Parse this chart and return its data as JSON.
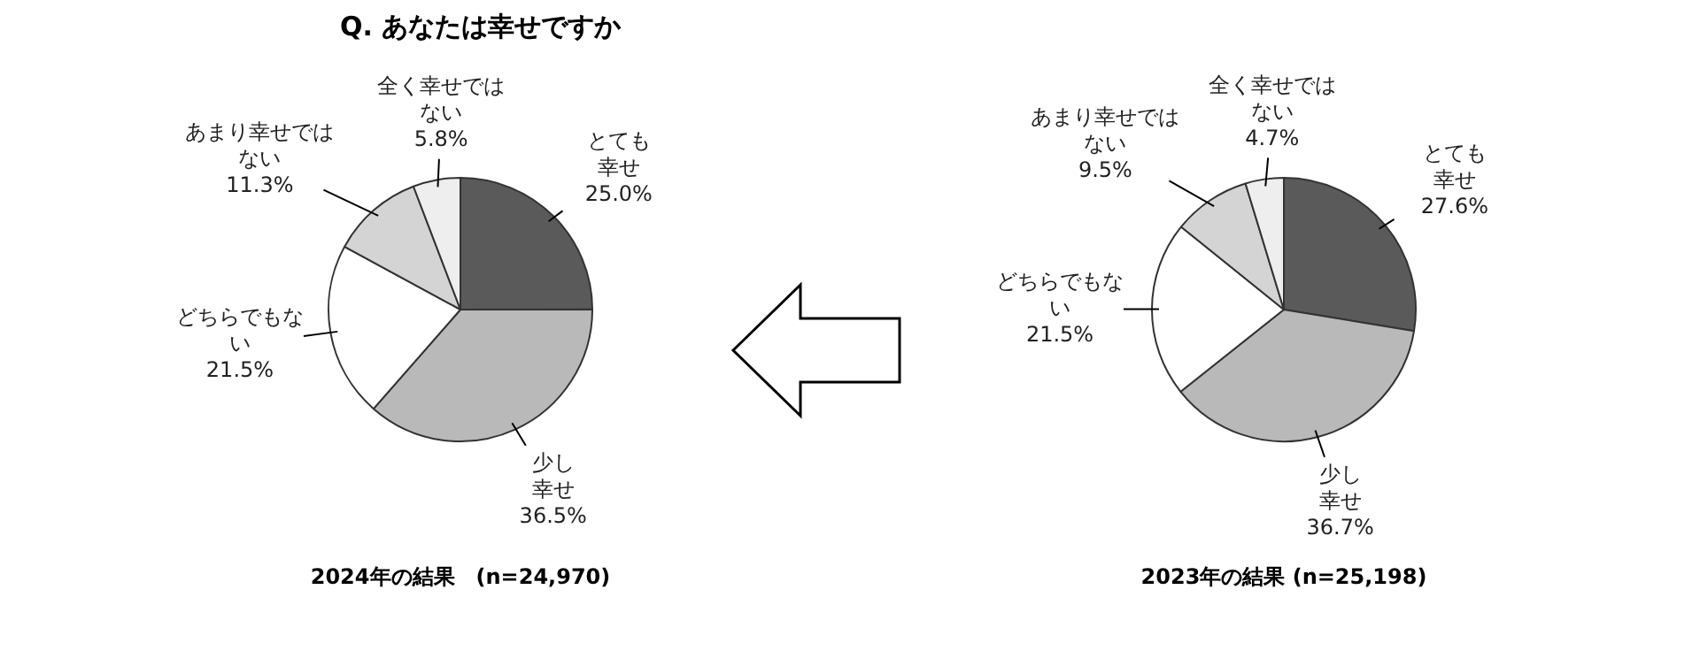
{
  "chart_data": [
    {
      "type": "pie",
      "title": "Q. あなたは幸せですか",
      "categories": [
        "とても幸せ",
        "少し幸せ",
        "どちらでもない",
        "あまり幸せではない",
        "全く幸せではない"
      ],
      "values": [
        25.0,
        36.5,
        21.5,
        11.3,
        5.8
      ],
      "value_labels": [
        "25.0%",
        "36.5%",
        "21.5%",
        "11.3%",
        "5.8%"
      ],
      "colors": [
        "#5a5a5a",
        "#b9b9b9",
        "#ffffff",
        "#d4d4d4",
        "#eeeeee"
      ],
      "annotations": [
        "2024年の結果　(n=24,970)"
      ],
      "legend": false
    },
    {
      "type": "pie",
      "categories": [
        "とても幸せ",
        "少し幸せ",
        "どちらでもない",
        "あまり幸せではない",
        "全く幸せではない"
      ],
      "values": [
        27.6,
        36.7,
        21.5,
        9.5,
        4.7
      ],
      "value_labels": [
        "27.6%",
        "36.7%",
        "21.5%",
        "9.5%",
        "4.7%"
      ],
      "colors": [
        "#5a5a5a",
        "#b9b9b9",
        "#ffffff",
        "#d4d4d4",
        "#eeeeee"
      ],
      "annotations": [
        "2023年の結果 (n=25,198)"
      ],
      "legend": false
    }
  ]
}
